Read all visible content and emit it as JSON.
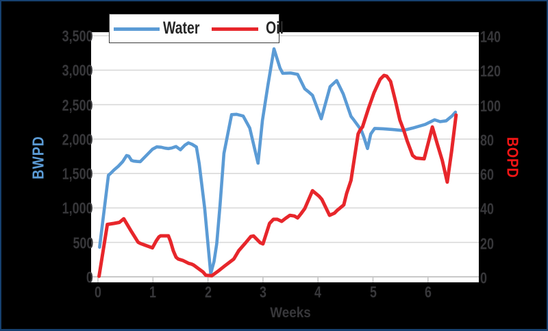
{
  "chart_data": {
    "type": "line",
    "xlabel": "Weeks",
    "ylabel_left": "BWPD",
    "ylabel_right": "BOPD",
    "x_axis": {
      "min": -0.125,
      "max": 6.92,
      "tick_values": [
        0,
        1,
        2,
        3,
        4,
        5,
        6
      ],
      "tick_labels": [
        "0",
        "1",
        "2",
        "3",
        "4",
        "5",
        "6"
      ]
    },
    "y_axis_left": {
      "min": 0,
      "max": 3500,
      "tick_step": 500,
      "tick_labels": [
        "0",
        "500",
        "1,000",
        "1,500",
        "2,000",
        "2,500",
        "3,000",
        "3,500"
      ]
    },
    "y_axis_right": {
      "min": 0,
      "max": 140,
      "tick_step": 20,
      "tick_labels": [
        "0",
        "20",
        "40",
        "60",
        "80",
        "100",
        "120",
        "140"
      ]
    },
    "grid": "horizontal",
    "legend_position": "top-left",
    "series": [
      {
        "name": "Water",
        "axis": "left",
        "unit": "BWPD",
        "color": "#5b9bd5",
        "points": [
          [
            0.03,
            430
          ],
          [
            0.19,
            1475
          ],
          [
            0.22,
            1495
          ],
          [
            0.29,
            1550
          ],
          [
            0.37,
            1605
          ],
          [
            0.45,
            1672
          ],
          [
            0.52,
            1760
          ],
          [
            0.56,
            1752
          ],
          [
            0.61,
            1690
          ],
          [
            0.65,
            1680
          ],
          [
            0.71,
            1675
          ],
          [
            0.77,
            1672
          ],
          [
            0.88,
            1762
          ],
          [
            0.99,
            1852
          ],
          [
            1.07,
            1887
          ],
          [
            1.15,
            1882
          ],
          [
            1.22,
            1868
          ],
          [
            1.28,
            1862
          ],
          [
            1.34,
            1870
          ],
          [
            1.42,
            1892
          ],
          [
            1.5,
            1845
          ],
          [
            1.58,
            1912
          ],
          [
            1.645,
            1945
          ],
          [
            1.71,
            1925
          ],
          [
            1.79,
            1885
          ],
          [
            1.84,
            1645
          ],
          [
            1.94,
            995
          ],
          [
            2.05,
            45
          ],
          [
            2.11,
            220
          ],
          [
            2.16,
            480
          ],
          [
            2.22,
            1050
          ],
          [
            2.29,
            1790
          ],
          [
            2.43,
            2355
          ],
          [
            2.52,
            2360
          ],
          [
            2.64,
            2335
          ],
          [
            2.76,
            2160
          ],
          [
            2.91,
            1650
          ],
          [
            2.99,
            2270
          ],
          [
            3.09,
            2780
          ],
          [
            3.2,
            3310
          ],
          [
            3.31,
            3030
          ],
          [
            3.36,
            2955
          ],
          [
            3.5,
            2960
          ],
          [
            3.63,
            2940
          ],
          [
            3.76,
            2730
          ],
          [
            3.82,
            2692
          ],
          [
            3.9,
            2635
          ],
          [
            4.06,
            2295
          ],
          [
            4.22,
            2762
          ],
          [
            4.34,
            2850
          ],
          [
            4.46,
            2655
          ],
          [
            4.6,
            2330
          ],
          [
            4.64,
            2290
          ],
          [
            4.75,
            2170
          ],
          [
            4.78,
            2145
          ],
          [
            4.83,
            2040
          ],
          [
            4.9,
            1863
          ],
          [
            4.96,
            2075
          ],
          [
            5.03,
            2155
          ],
          [
            5.18,
            2150
          ],
          [
            5.35,
            2140
          ],
          [
            5.55,
            2125
          ],
          [
            5.72,
            2160
          ],
          [
            5.95,
            2212
          ],
          [
            6.12,
            2280
          ],
          [
            6.22,
            2253
          ],
          [
            6.33,
            2265
          ],
          [
            6.44,
            2338
          ],
          [
            6.5,
            2390
          ]
        ]
      },
      {
        "name": "Oil",
        "axis": "right",
        "unit": "BOPD",
        "color": "#e7262b",
        "points": [
          [
            0.02,
            0.3
          ],
          [
            0.17,
            30.4
          ],
          [
            0.29,
            31.0
          ],
          [
            0.39,
            31.6
          ],
          [
            0.47,
            33.7
          ],
          [
            0.6,
            26.7
          ],
          [
            0.73,
            20.1
          ],
          [
            0.77,
            19.4
          ],
          [
            0.86,
            18.3
          ],
          [
            0.99,
            16.8
          ],
          [
            1.06,
            20.9
          ],
          [
            1.11,
            23.2
          ],
          [
            1.14,
            23.8
          ],
          [
            1.28,
            23.8
          ],
          [
            1.32,
            20.5
          ],
          [
            1.37,
            15.1
          ],
          [
            1.42,
            11.4
          ],
          [
            1.46,
            10.3
          ],
          [
            1.55,
            9.4
          ],
          [
            1.65,
            7.8
          ],
          [
            1.7,
            7.4
          ],
          [
            1.74,
            6.8
          ],
          [
            1.83,
            4.7
          ],
          [
            1.91,
            2.8
          ],
          [
            1.96,
            0.9
          ],
          [
            2.07,
            0.6
          ],
          [
            2.18,
            3.2
          ],
          [
            2.3,
            6.2
          ],
          [
            2.42,
            9.1
          ],
          [
            2.47,
            10.3
          ],
          [
            2.56,
            15.2
          ],
          [
            2.68,
            19.6
          ],
          [
            2.78,
            23.4
          ],
          [
            2.83,
            23.7
          ],
          [
            2.95,
            19.8
          ],
          [
            3.0,
            19.1
          ],
          [
            3.12,
            31.0
          ],
          [
            3.19,
            33.4
          ],
          [
            3.26,
            33.4
          ],
          [
            3.34,
            32.2
          ],
          [
            3.41,
            33.9
          ],
          [
            3.49,
            35.7
          ],
          [
            3.57,
            35.3
          ],
          [
            3.63,
            34.2
          ],
          [
            3.69,
            36.6
          ],
          [
            3.76,
            39.6
          ],
          [
            3.9,
            50.0
          ],
          [
            4.02,
            46.8
          ],
          [
            4.07,
            45.0
          ],
          [
            4.21,
            35.7
          ],
          [
            4.3,
            37.0
          ],
          [
            4.35,
            38.6
          ],
          [
            4.47,
            41.8
          ],
          [
            4.52,
            48.4
          ],
          [
            4.6,
            56.0
          ],
          [
            4.73,
            83.0
          ],
          [
            4.77,
            85.5
          ],
          [
            4.81,
            87.0
          ],
          [
            4.92,
            98.0
          ],
          [
            5.02,
            107.0
          ],
          [
            5.13,
            114.7
          ],
          [
            5.2,
            117.0
          ],
          [
            5.25,
            116.5
          ],
          [
            5.32,
            113.5
          ],
          [
            5.41,
            102.0
          ],
          [
            5.49,
            91.0
          ],
          [
            5.56,
            85.0
          ],
          [
            5.62,
            79.0
          ],
          [
            5.72,
            70.5
          ],
          [
            5.78,
            69.0
          ],
          [
            5.93,
            68.5
          ],
          [
            6.08,
            87.0
          ],
          [
            6.17,
            77.0
          ],
          [
            6.26,
            67.5
          ],
          [
            6.35,
            55.0
          ],
          [
            6.43,
            73.0
          ],
          [
            6.51,
            94.0
          ]
        ]
      }
    ]
  },
  "legend": {
    "items": [
      {
        "label": "Water",
        "color": "#5b9bd5"
      },
      {
        "label": "Oil",
        "color": "#e7262b"
      }
    ]
  },
  "colors": {
    "background": "#000000",
    "frame_border": "#16406f",
    "plot_background": "#ffffff",
    "gridline": "#d9d9d9",
    "axis_line": "#c6c6c6",
    "tick_label": "#37373a",
    "ylabel_left_color": "#5b9bd5",
    "ylabel_right_color": "#f21515"
  }
}
